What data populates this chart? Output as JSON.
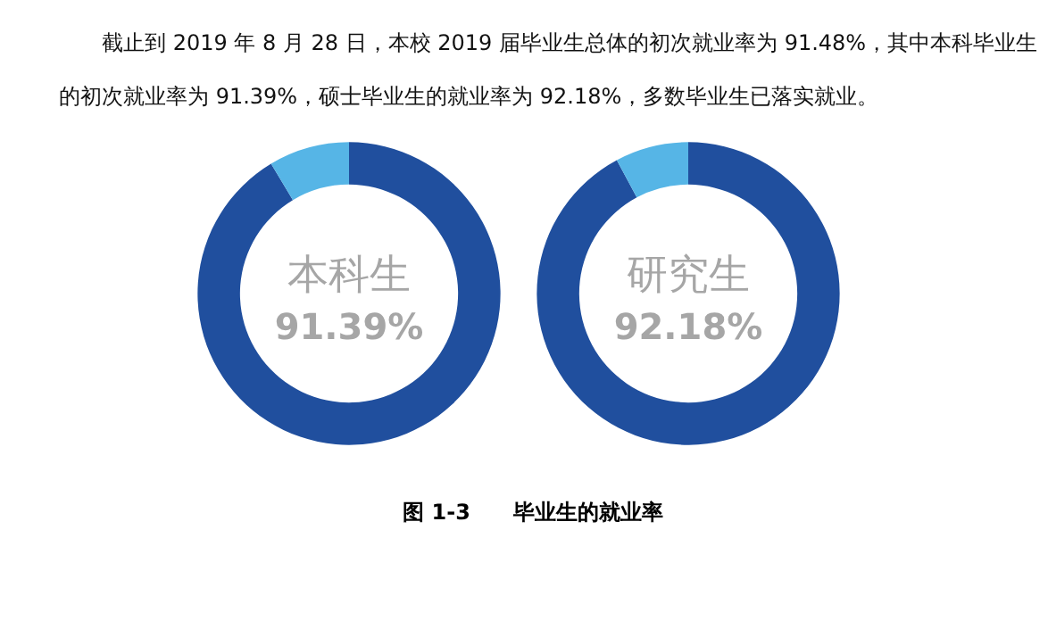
{
  "chart_data": [
    {
      "type": "donut",
      "title": "本科生",
      "categories": [
        null,
        null
      ],
      "values": [
        91.39,
        8.61
      ],
      "colors": [
        "#204f9e",
        "#56b5e6"
      ],
      "value_labels": [
        "91.39%",
        null
      ],
      "annotations": [
        "截止到 2019 年 8 月 28 日，本校 2019 届毕业生总体的初次就业率为 91.48%，其中本科毕业生的初次就业率为 91.39%，硕士毕业生的就业率为 92.18%，多数毕业生已落实就业。"
      ]
    },
    {
      "type": "donut",
      "title": "研究生",
      "categories": [
        null,
        null
      ],
      "values": [
        92.18,
        7.82
      ],
      "colors": [
        "#204f9e",
        "#56b5e6"
      ],
      "value_labels": [
        "92.18%",
        null
      ],
      "annotations": [
        "图 1-3　　毕业生的就业率"
      ]
    }
  ]
}
